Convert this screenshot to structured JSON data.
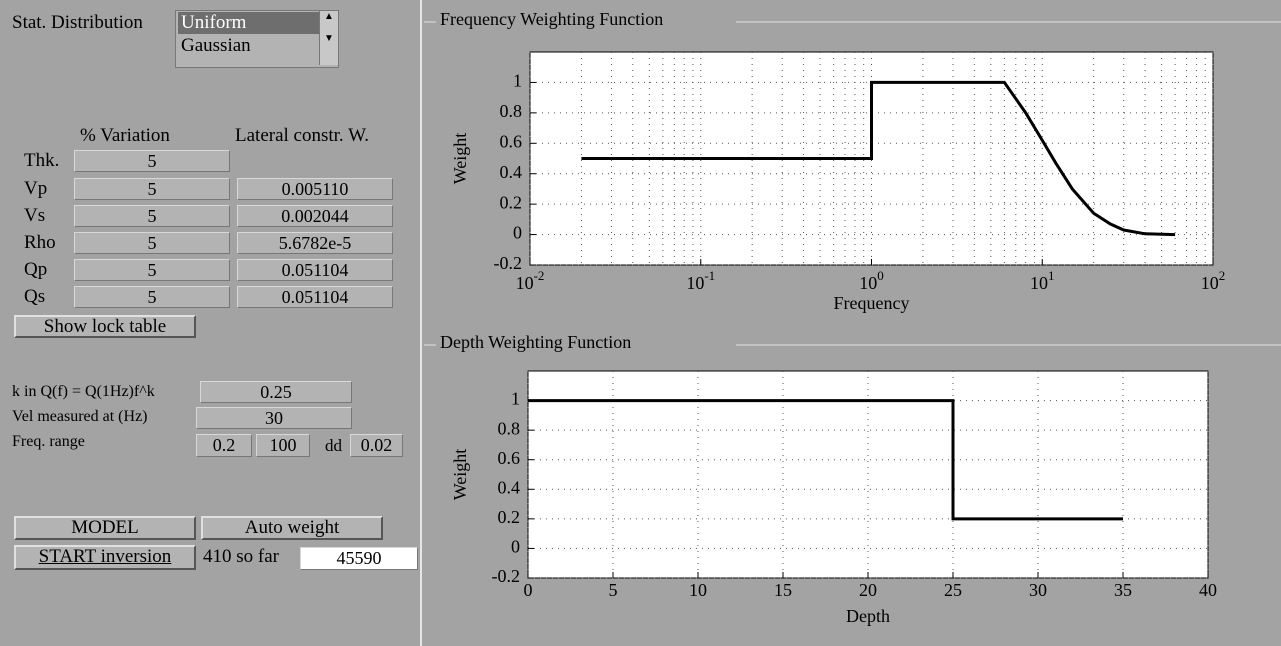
{
  "left_panel": {
    "stat_distribution": {
      "label": "Stat. Distribution",
      "options": [
        "Uniform",
        "Gaussian"
      ],
      "selected": 0
    },
    "table": {
      "headers": [
        "% Variation",
        "Lateral constr. W."
      ],
      "rows": [
        {
          "label": "Thk.",
          "variation": "5"
        },
        {
          "label": "Vp",
          "variation": "5",
          "weight": "0.005110"
        },
        {
          "label": "Vs",
          "variation": "5",
          "weight": "0.002044"
        },
        {
          "label": "Rho",
          "variation": "5",
          "weight": "5.6782e-5"
        },
        {
          "label": "Qp",
          "variation": "5",
          "weight": "0.051104"
        },
        {
          "label": "Qs",
          "variation": "5",
          "weight": "0.051104"
        }
      ]
    },
    "show_lock_table": "Show lock table",
    "k_label": "k in Q(f) = Q(1Hz)f^k",
    "k_value": "0.25",
    "vel_label": "Vel measured at (Hz)",
    "vel_value": "30",
    "freq_label": "Freq. range",
    "freq_min": "0.2",
    "freq_max": "100",
    "dd_label": "dd",
    "dd_value": "0.02",
    "model_button": "MODEL",
    "auto_weight_button": "Auto weight",
    "start_button": "START inversion",
    "so_far": "410 so far",
    "count": "45590"
  },
  "chart_data": [
    {
      "type": "line",
      "title": "Frequency Weighting Function",
      "x_label": "Frequency",
      "y_label": "Weight",
      "log_x": true,
      "grid": true,
      "minor_grid": true,
      "color": "#000000",
      "x": [
        0.02,
        1,
        1,
        6,
        8,
        10,
        12,
        15,
        20,
        25,
        30,
        40,
        60
      ],
      "values": [
        0.5,
        0.5,
        1,
        1,
        0.8,
        0.62,
        0.47,
        0.3,
        0.14,
        0.07,
        0.03,
        0.005,
        0
      ],
      "xlim": [
        0.01,
        100
      ],
      "xticks": [
        {
          "value": 0.01,
          "label": "10",
          "exponent": "-2"
        },
        {
          "value": 0.1,
          "label": "10",
          "exponent": "-1"
        },
        {
          "value": 1,
          "label": "10",
          "exponent": "0"
        },
        {
          "value": 10,
          "label": "10",
          "exponent": "1"
        },
        {
          "value": 100,
          "label": "10",
          "exponent": "2"
        }
      ],
      "ylim": [
        -0.2,
        1.2
      ],
      "yticks": [
        -0.2,
        0,
        0.2,
        0.4,
        0.6,
        0.8,
        1
      ]
    },
    {
      "type": "line",
      "title": "Depth Weighting Function",
      "x_label": "Depth",
      "y_label": "Weight",
      "log_x": false,
      "grid": true,
      "minor_grid": false,
      "color": "#000000",
      "x": [
        0,
        25,
        25,
        35
      ],
      "values": [
        1,
        1,
        0.2,
        0.2
      ],
      "xlim": [
        0,
        40
      ],
      "xticks": [
        0,
        5,
        10,
        15,
        20,
        25,
        30,
        35,
        40
      ],
      "ylim": [
        -0.2,
        1.2
      ],
      "yticks": [
        -0.2,
        0,
        0.2,
        0.4,
        0.6,
        0.8,
        1
      ]
    }
  ]
}
